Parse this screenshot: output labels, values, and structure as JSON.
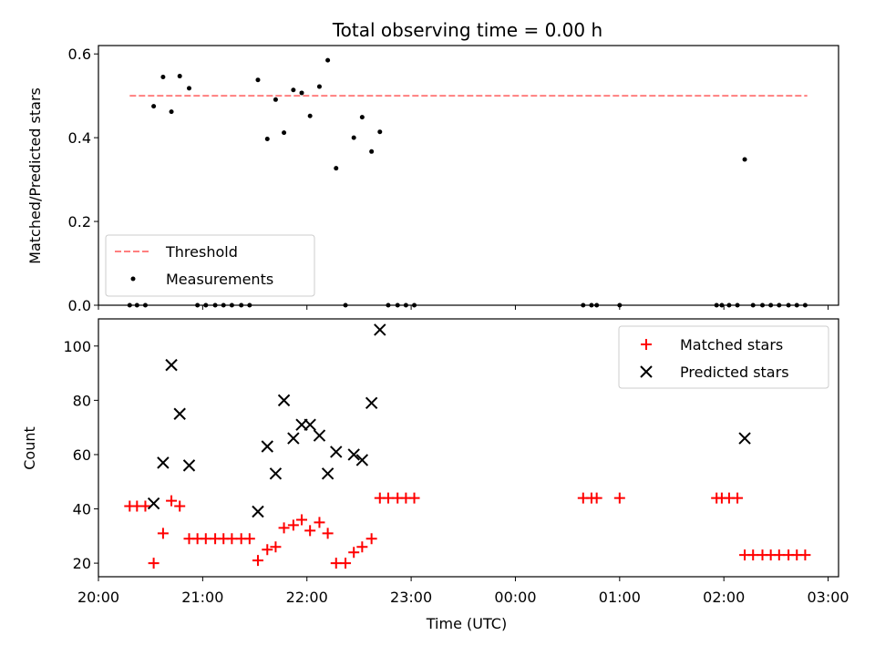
{
  "chart_data": [
    {
      "type": "scatter",
      "title": "Total observing time = 0.00 h",
      "xlabel": "",
      "ylabel": "Matched/Predicted stars",
      "ylim": [
        0,
        0.62
      ],
      "yticks": [
        0.0,
        0.2,
        0.4,
        0.6
      ],
      "ytick_labels": [
        "0.0",
        "0.2",
        "0.4",
        "0.6"
      ],
      "xlim": [
        20.0,
        27.1
      ],
      "grid": false,
      "legend_position": "lower-left",
      "threshold": {
        "name": "Threshold",
        "value": 0.5,
        "x": [
          20.3,
          26.8
        ],
        "color": "#ff7f7f"
      },
      "series": [
        {
          "name": "Measurements",
          "color": "#000000",
          "x": [
            20.3,
            20.37,
            20.45,
            20.53,
            20.62,
            20.7,
            20.78,
            20.87,
            20.95,
            21.03,
            21.12,
            21.2,
            21.28,
            21.37,
            21.45,
            21.53,
            21.62,
            21.7,
            21.78,
            21.87,
            21.95,
            22.03,
            22.12,
            22.2,
            22.28,
            22.37,
            22.45,
            22.53,
            22.62,
            22.7,
            22.78,
            22.87,
            22.95,
            23.03,
            24.65,
            24.73,
            24.78,
            25.0,
            25.93,
            25.98,
            26.05,
            26.13,
            26.2,
            26.28,
            26.37,
            26.45,
            26.53,
            26.62,
            26.7,
            26.78
          ],
          "y": [
            0.0,
            0.0,
            0.0,
            0.475,
            0.545,
            0.462,
            0.547,
            0.518,
            0.0,
            0.0,
            0.0,
            0.0,
            0.0,
            0.0,
            0.0,
            0.538,
            0.397,
            0.491,
            0.412,
            0.514,
            0.507,
            0.452,
            0.522,
            0.585,
            0.327,
            0.0,
            0.4,
            0.449,
            0.367,
            0.414,
            0.0,
            0.0,
            0.0,
            0.0,
            0.0,
            0.0,
            0.0,
            0.0,
            0.0,
            0.0,
            0.0,
            0.0,
            0.348,
            0.0,
            0.0,
            0.0,
            0.0,
            0.0,
            0.0,
            0.0
          ]
        }
      ]
    },
    {
      "type": "scatter",
      "title": "",
      "xlabel": "Time (UTC)",
      "ylabel": "Count",
      "ylim": [
        15,
        110
      ],
      "yticks": [
        20,
        40,
        60,
        80,
        100
      ],
      "ytick_labels": [
        "20",
        "40",
        "60",
        "80",
        "100"
      ],
      "xlim": [
        20.0,
        27.1
      ],
      "xticks": [
        20,
        21,
        22,
        23,
        24,
        25,
        26,
        27
      ],
      "xtick_labels": [
        "20:00",
        "21:00",
        "22:00",
        "23:00",
        "00:00",
        "01:00",
        "02:00",
        "03:00"
      ],
      "grid": false,
      "legend_position": "upper-right",
      "series": [
        {
          "name": "Matched stars",
          "marker": "plus",
          "color": "#ff0000",
          "x": [
            20.3,
            20.37,
            20.45,
            20.53,
            20.62,
            20.7,
            20.78,
            20.87,
            20.95,
            21.03,
            21.12,
            21.2,
            21.28,
            21.37,
            21.45,
            21.53,
            21.62,
            21.7,
            21.78,
            21.87,
            21.95,
            22.03,
            22.12,
            22.2,
            22.28,
            22.37,
            22.45,
            22.53,
            22.62,
            22.7,
            22.78,
            22.87,
            22.95,
            23.03,
            24.65,
            24.73,
            24.78,
            25.0,
            25.93,
            25.98,
            26.05,
            26.13,
            26.2,
            26.28,
            26.37,
            26.45,
            26.53,
            26.62,
            26.7,
            26.78
          ],
          "y": [
            41,
            41,
            41,
            20,
            31,
            43,
            41,
            29,
            29,
            29,
            29,
            29,
            29,
            29,
            29,
            21,
            25,
            26,
            33,
            34,
            36,
            32,
            35,
            31,
            20,
            20,
            24,
            26,
            29,
            44,
            44,
            44,
            44,
            44,
            44,
            44,
            44,
            44,
            44,
            44,
            44,
            44,
            23,
            23,
            23,
            23,
            23,
            23,
            23,
            23
          ]
        },
        {
          "name": "Predicted stars",
          "marker": "x",
          "color": "#000000",
          "x": [
            20.53,
            20.62,
            20.7,
            20.78,
            20.87,
            21.53,
            21.62,
            21.7,
            21.78,
            21.87,
            21.95,
            22.03,
            22.12,
            22.2,
            22.28,
            22.45,
            22.53,
            22.62,
            22.7,
            26.2
          ],
          "y": [
            42,
            57,
            93,
            75,
            56,
            39,
            63,
            53,
            80,
            66,
            71,
            71,
            67,
            53,
            61,
            60,
            58,
            79,
            106,
            66
          ]
        }
      ]
    }
  ]
}
